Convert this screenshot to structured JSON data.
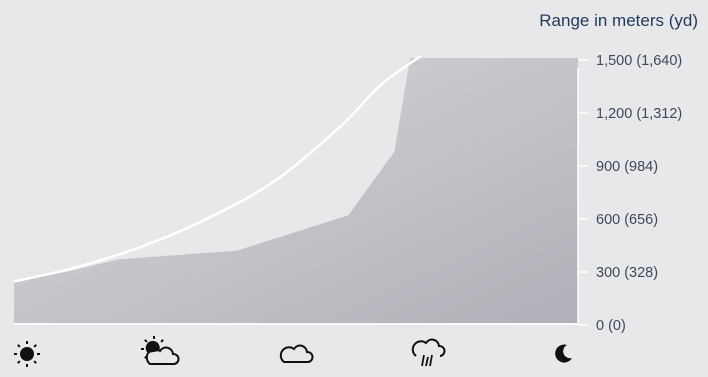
{
  "chart_data": {
    "type": "area",
    "y_axis_title": "Range in meters (yd)",
    "ylim": [
      0,
      1500
    ],
    "y_ticks": [
      {
        "value": 0,
        "label": "0 (0)"
      },
      {
        "value": 300,
        "label": "300 (328)"
      },
      {
        "value": 600,
        "label": "600 (656)"
      },
      {
        "value": 900,
        "label": "900 (984)"
      },
      {
        "value": 1200,
        "label": "1,200 (1,312)"
      },
      {
        "value": 1500,
        "label": "1,500 (1,640)"
      }
    ],
    "categories": [
      "clear-day",
      "partly-cloudy",
      "cloudy",
      "rain",
      "night"
    ],
    "series": [
      {
        "kind": "area",
        "x": [
          0,
          0.4,
          0.8,
          1.7,
          2.55,
          2.9,
          3.02,
          4.3
        ],
        "values": [
          235,
          290,
          360,
          410,
          610,
          970,
          1500,
          1500
        ]
      },
      {
        "kind": "line",
        "x": [
          0,
          0.5,
          1.0,
          1.5,
          2.0,
          2.5,
          2.8,
          3.1
        ],
        "values": [
          235,
          320,
          440,
          600,
          810,
          1120,
          1350,
          1510
        ]
      }
    ],
    "colors": {
      "background": "#e8e8ea",
      "area_top": "#d8d8dc",
      "area_bottom": "#b0b0b8",
      "line": "#ffffff",
      "tick_text": "#3a4a5c",
      "axis_title": "#1f3a5c",
      "icon": "#111111"
    }
  }
}
